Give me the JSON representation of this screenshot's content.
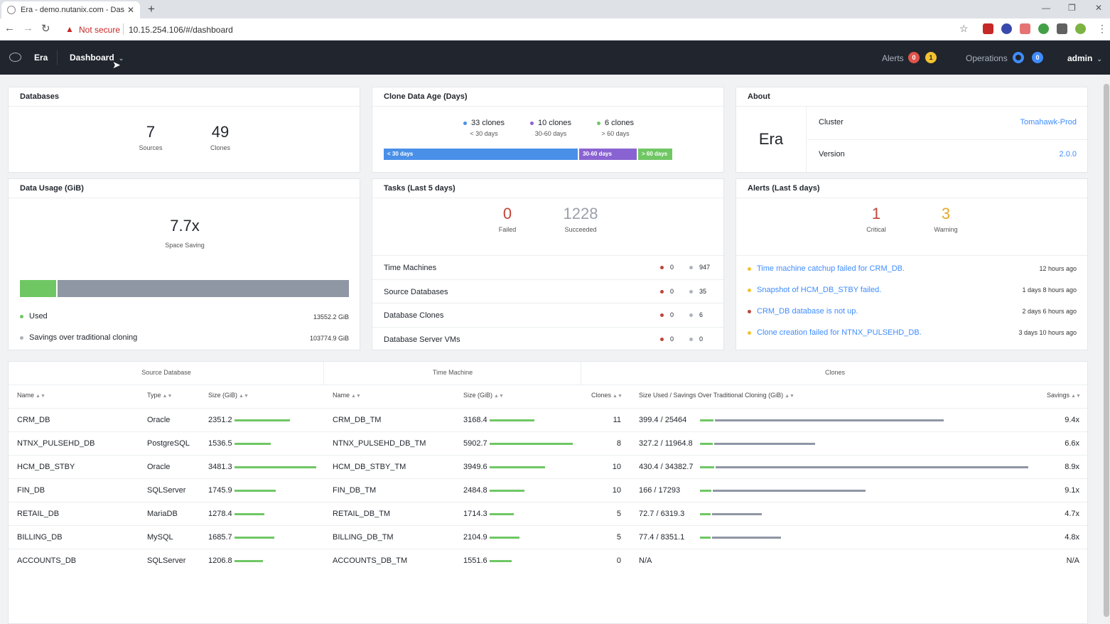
{
  "browser": {
    "tab_title": "Era - demo.nutanix.com - Dashb",
    "tab_close": "✕",
    "new_tab": "+",
    "security_warning": "Not secure",
    "url": "10.15.254.106/#/dashboard"
  },
  "header": {
    "app_name": "Era",
    "menu_label": "Dashboard",
    "alerts_label": "Alerts",
    "alerts_critical_count": "0",
    "alerts_warning_count": "1",
    "operations_label": "Operations",
    "operations_count": "0",
    "user": "admin",
    "colors": {
      "bg": "#20252e",
      "critical": "#e0534a",
      "warning": "#f2c230",
      "ops": "#3f8cff"
    }
  },
  "databases": {
    "title": "Databases",
    "sources_value": "7",
    "sources_label": "Sources",
    "clones_value": "49",
    "clones_label": "Clones"
  },
  "clone_age": {
    "title": "Clone Data Age (Days)",
    "buckets": [
      {
        "count": "33 clones",
        "range": "< 30 days",
        "bar_label": "< 30 days",
        "color": "#4a90e8",
        "clones": 33
      },
      {
        "count": "10 clones",
        "range": "30-60 days",
        "bar_label": "30-60 days",
        "color": "#8a63d2",
        "clones": 10
      },
      {
        "count": "6 clones",
        "range": "> 60 days",
        "bar_label": "> 60 days",
        "color": "#6fc764",
        "clones": 6
      }
    ]
  },
  "about": {
    "title": "About",
    "product": "Era",
    "cluster_label": "Cluster",
    "cluster_value": "Tomahawk-Prod",
    "version_label": "Version",
    "version_value": "2.0.0"
  },
  "data_usage": {
    "title": "Data Usage (GiB)",
    "ratio": "7.7x",
    "ratio_label": "Space Saving",
    "used_label": "Used",
    "used_value": "13552.2 GiB",
    "savings_label": "Savings over traditional cloning",
    "savings_value": "103774.9 GiB",
    "used_fraction": 0.1155
  },
  "tasks": {
    "title": "Tasks (Last 5 days)",
    "failed_value": "0",
    "failed_label": "Failed",
    "succeeded_value": "1228",
    "succeeded_label": "Succeeded",
    "rows": [
      {
        "label": "Time Machines",
        "failed": "0",
        "succeeded": "947"
      },
      {
        "label": "Source Databases",
        "failed": "0",
        "succeeded": "35"
      },
      {
        "label": "Database Clones",
        "failed": "0",
        "succeeded": "6"
      },
      {
        "label": "Database Server VMs",
        "failed": "0",
        "succeeded": "0"
      }
    ]
  },
  "alerts_panel": {
    "title": "Alerts (Last 5 days)",
    "critical_value": "1",
    "critical_label": "Critical",
    "warning_value": "3",
    "warning_label": "Warning",
    "items": [
      {
        "text": "Time machine catchup failed for CRM_DB.",
        "time": "12 hours ago",
        "severity": "warning"
      },
      {
        "text": "Snapshot of HCM_DB_STBY failed.",
        "time": "1 days 8 hours ago",
        "severity": "warning"
      },
      {
        "text": "CRM_DB database is not up.",
        "time": "2 days 6 hours ago",
        "severity": "critical"
      },
      {
        "text": "Clone creation failed for NTNX_PULSEHD_DB.",
        "time": "3 days 10 hours ago",
        "severity": "warning"
      }
    ]
  },
  "table": {
    "groups": {
      "source": "Source Database",
      "tm": "Time Machine",
      "clones": "Clones"
    },
    "headers": {
      "name": "Name",
      "type": "Type",
      "size": "Size (GiB)",
      "tm_name": "Name",
      "tm_size": "Size (GiB)",
      "clones": "Clones",
      "used_savings": "Size Used / Savings Over Traditional Cloning (GiB)",
      "savings": "Savings"
    },
    "rows": [
      {
        "name": "CRM_DB",
        "type": "Oracle",
        "size": "2351.2",
        "size_v": 2351.2,
        "tm": "CRM_DB_TM",
        "tm_size": "3168.4",
        "tm_size_v": 3168.4,
        "clones": "11",
        "used": "399.4 / 25464",
        "used_v": 399.4,
        "sav_v": 25464,
        "savings": "9.4x"
      },
      {
        "name": "NTNX_PULSEHD_DB",
        "type": "PostgreSQL",
        "size": "1536.5",
        "size_v": 1536.5,
        "tm": "NTNX_PULSEHD_DB_TM",
        "tm_size": "5902.7",
        "tm_size_v": 5902.7,
        "clones": "8",
        "used": "327.2 / 11964.8",
        "used_v": 327.2,
        "sav_v": 11964.8,
        "savings": "6.6x"
      },
      {
        "name": "HCM_DB_STBY",
        "type": "Oracle",
        "size": "3481.3",
        "size_v": 3481.3,
        "tm": "HCM_DB_STBY_TM",
        "tm_size": "3949.6",
        "tm_size_v": 3949.6,
        "clones": "10",
        "used": "430.4 / 34382.7",
        "used_v": 430.4,
        "sav_v": 34382.7,
        "savings": "8.9x"
      },
      {
        "name": "FIN_DB",
        "type": "SQLServer",
        "size": "1745.9",
        "size_v": 1745.9,
        "tm": "FIN_DB_TM",
        "tm_size": "2484.8",
        "tm_size_v": 2484.8,
        "clones": "10",
        "used": "166 / 17293",
        "used_v": 166,
        "sav_v": 17293,
        "savings": "9.1x"
      },
      {
        "name": "RETAIL_DB",
        "type": "MariaDB",
        "size": "1278.4",
        "size_v": 1278.4,
        "tm": "RETAIL_DB_TM",
        "tm_size": "1714.3",
        "tm_size_v": 1714.3,
        "clones": "5",
        "used": "72.7 / 6319.3",
        "used_v": 72.7,
        "sav_v": 6319.3,
        "savings": "4.7x"
      },
      {
        "name": "BILLING_DB",
        "type": "MySQL",
        "size": "1685.7",
        "size_v": 1685.7,
        "tm": "BILLING_DB_TM",
        "tm_size": "2104.9",
        "tm_size_v": 2104.9,
        "clones": "5",
        "used": "77.4 / 8351.1",
        "used_v": 77.4,
        "sav_v": 8351.1,
        "savings": "4.8x"
      },
      {
        "name": "ACCOUNTS_DB",
        "type": "SQLServer",
        "size": "1206.8",
        "size_v": 1206.8,
        "tm": "ACCOUNTS_DB_TM",
        "tm_size": "1551.6",
        "tm_size_v": 1551.6,
        "clones": "0",
        "used": "N/A",
        "used_v": 0,
        "sav_v": 0,
        "savings": "N/A"
      }
    ]
  }
}
